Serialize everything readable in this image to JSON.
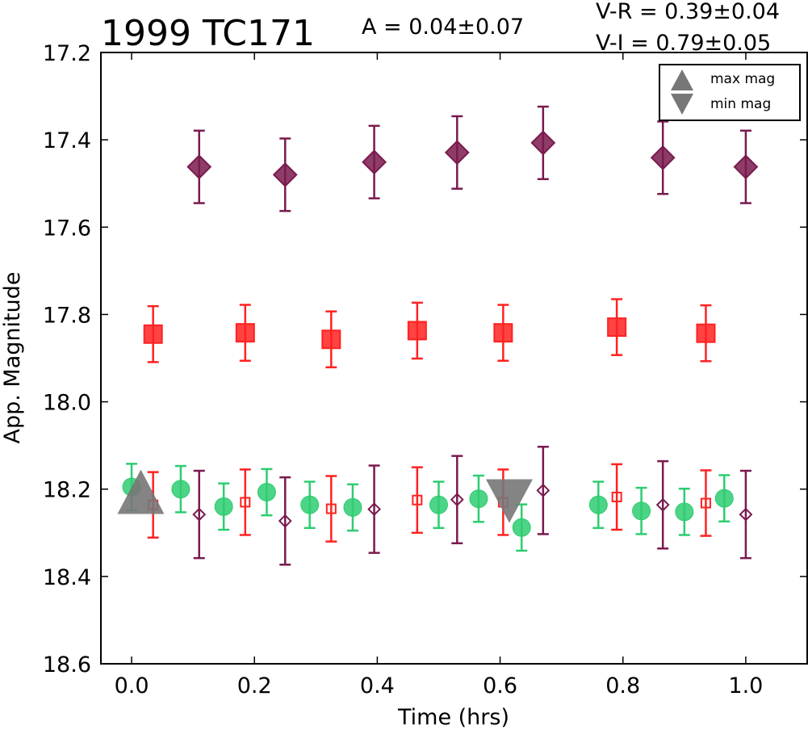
{
  "chart_data": {
    "type": "scatter",
    "title": "1999 TC171",
    "annotations": {
      "amplitude": "A  = 0.04±0.07",
      "v_r": "V-R = 0.39±0.04",
      "v_i": "V-I  = 0.79±0.05"
    },
    "xlabel": "Time (hrs)",
    "ylabel": "App. Magnitude",
    "xlim": [
      -0.05,
      1.1
    ],
    "ylim": [
      18.6,
      17.2
    ],
    "y_inverted": true,
    "x_ticks": [
      "0.0",
      "0.2",
      "0.4",
      "0.6",
      "0.8",
      "1.0"
    ],
    "y_ticks": [
      "17.2",
      "17.4",
      "17.6",
      "17.8",
      "18.0",
      "18.2",
      "18.4",
      "18.6"
    ],
    "grid": false,
    "legend": {
      "position": "top-right",
      "entries": [
        "max mag",
        "min mag"
      ]
    },
    "colors": {
      "green": "#2ecc71",
      "red": "#ff2222",
      "maroon": "#7a1a4e",
      "gray": "#777777"
    },
    "series": [
      {
        "marker": "circle",
        "filled": true,
        "color": "#2ecc71",
        "err": 0.053,
        "points": [
          [
            0.0,
            18.195
          ],
          [
            0.08,
            18.2
          ],
          [
            0.15,
            18.24
          ],
          [
            0.22,
            18.207
          ],
          [
            0.29,
            18.236
          ],
          [
            0.36,
            18.242
          ],
          [
            0.5,
            18.236
          ],
          [
            0.565,
            18.222
          ],
          [
            0.635,
            18.288
          ],
          [
            0.76,
            18.236
          ],
          [
            0.83,
            18.25
          ],
          [
            0.9,
            18.252
          ],
          [
            0.965,
            18.221
          ]
        ]
      },
      {
        "marker": "square",
        "filled": false,
        "color": "#ff2222",
        "err": 0.075,
        "points": [
          [
            0.035,
            18.236
          ],
          [
            0.185,
            18.23
          ],
          [
            0.325,
            18.245
          ],
          [
            0.465,
            18.225
          ],
          [
            0.605,
            18.23
          ],
          [
            0.79,
            18.218
          ],
          [
            0.935,
            18.232
          ]
        ]
      },
      {
        "marker": "diamond",
        "filled": false,
        "color": "#7a1a4e",
        "err": 0.1,
        "points": [
          [
            0.11,
            18.258
          ],
          [
            0.25,
            18.273
          ],
          [
            0.395,
            18.246
          ],
          [
            0.53,
            18.224
          ],
          [
            0.67,
            18.203
          ],
          [
            0.865,
            18.236
          ],
          [
            1.0,
            18.258
          ]
        ]
      },
      {
        "marker": "square",
        "filled": true,
        "color": "#ff2222",
        "err": 0.064,
        "points": [
          [
            0.035,
            17.845
          ],
          [
            0.185,
            17.842
          ],
          [
            0.325,
            17.857
          ],
          [
            0.465,
            17.837
          ],
          [
            0.605,
            17.842
          ],
          [
            0.79,
            17.829
          ],
          [
            0.935,
            17.843
          ]
        ]
      },
      {
        "marker": "diamond",
        "filled": true,
        "color": "#7a1a4e",
        "err": 0.083,
        "points": [
          [
            0.11,
            17.462
          ],
          [
            0.25,
            17.48
          ],
          [
            0.395,
            17.451
          ],
          [
            0.53,
            17.429
          ],
          [
            0.67,
            17.407
          ],
          [
            0.865,
            17.441
          ],
          [
            1.0,
            17.462
          ]
        ]
      }
    ],
    "extrema": [
      {
        "kind": "max mag",
        "x": 0.015,
        "y": 18.22
      },
      {
        "kind": "min mag",
        "x": 0.615,
        "y": 18.255
      }
    ]
  }
}
